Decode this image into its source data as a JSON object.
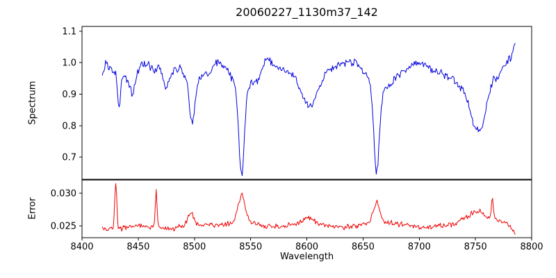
{
  "chart_data": {
    "type": "line",
    "title": "20060227_1130m37_142",
    "xlabel": "Wavelength",
    "xlim": [
      8400,
      8800
    ],
    "xticks": [
      8400,
      8450,
      8500,
      8550,
      8600,
      8650,
      8700,
      8750,
      8800
    ],
    "xtick_labels": [
      "8400",
      "8450",
      "8500",
      "8550",
      "8600",
      "8650",
      "8700",
      "8750",
      "8800"
    ],
    "x_range": [
      8418,
      8786
    ],
    "x_step": 0.75,
    "noise_seed": 12345,
    "panels": [
      {
        "name": "spectrum",
        "type": "line",
        "ylabel": "Spectrum",
        "color": "#0000dd",
        "ylim": [
          0.63,
          1.115
        ],
        "yticks": [
          0.7,
          0.8,
          0.9,
          1.0,
          1.1
        ],
        "ytick_labels": [
          "0.7",
          "0.8",
          "0.9",
          "1.0",
          "1.1"
        ],
        "noise": 0.011,
        "continuum": [
          [
            8418,
            0.955
          ],
          [
            8421,
            0.995
          ],
          [
            8424,
            0.98
          ],
          [
            8428,
            0.975
          ],
          [
            8433,
            0.97
          ],
          [
            8437,
            0.96
          ],
          [
            8442,
            0.945
          ],
          [
            8448,
            0.96
          ],
          [
            8452,
            0.985
          ],
          [
            8456,
            1.0
          ],
          [
            8460,
            0.99
          ],
          [
            8464,
            0.975
          ],
          [
            8468,
            0.985
          ],
          [
            8472,
            0.96
          ],
          [
            8476,
            0.955
          ],
          [
            8480,
            0.97
          ],
          [
            8484,
            0.985
          ],
          [
            8488,
            0.995
          ],
          [
            8492,
            0.99
          ],
          [
            8500,
            0.985
          ],
          [
            8508,
            0.975
          ],
          [
            8514,
            0.97
          ],
          [
            8518,
            0.995
          ],
          [
            8522,
            1.005
          ],
          [
            8526,
            0.995
          ],
          [
            8534,
            0.99
          ],
          [
            8542,
            0.995
          ],
          [
            8550,
            0.975
          ],
          [
            8556,
            0.96
          ],
          [
            8560,
            0.98
          ],
          [
            8564,
            1.02
          ],
          [
            8568,
            1.0
          ],
          [
            8574,
            0.985
          ],
          [
            8580,
            0.975
          ],
          [
            8586,
            0.965
          ],
          [
            8594,
            0.97
          ],
          [
            8600,
            0.975
          ],
          [
            8610,
            0.965
          ],
          [
            8618,
            0.975
          ],
          [
            8624,
            0.985
          ],
          [
            8630,
            0.995
          ],
          [
            8636,
            1.0
          ],
          [
            8642,
            1.005
          ],
          [
            8648,
            0.995
          ],
          [
            8656,
            0.99
          ],
          [
            8662,
            0.985
          ],
          [
            8668,
            0.96
          ],
          [
            8674,
            0.945
          ],
          [
            8680,
            0.96
          ],
          [
            8686,
            0.975
          ],
          [
            8692,
            0.985
          ],
          [
            8698,
            1.0
          ],
          [
            8704,
            0.995
          ],
          [
            8710,
            0.98
          ],
          [
            8716,
            0.97
          ],
          [
            8722,
            0.965
          ],
          [
            8728,
            0.95
          ],
          [
            8734,
            0.935
          ],
          [
            8740,
            0.92
          ],
          [
            8746,
            0.925
          ],
          [
            8752,
            0.93
          ],
          [
            8758,
            0.915
          ],
          [
            8762,
            0.93
          ],
          [
            8766,
            0.955
          ],
          [
            8770,
            0.95
          ],
          [
            8774,
            0.985
          ],
          [
            8778,
            1.005
          ],
          [
            8782,
            1.02
          ],
          [
            8786,
            1.075
          ]
        ],
        "features": [
          {
            "center": 8433,
            "amp": -0.115,
            "sigma": 1.3
          },
          {
            "center": 8445,
            "amp": -0.05,
            "sigma": 2
          },
          {
            "center": 8475,
            "amp": -0.03,
            "sigma": 2.5
          },
          {
            "center": 8498,
            "amp": -0.135,
            "sigma": 2.2
          },
          {
            "center": 8498,
            "amp": -0.045,
            "sigma": 7
          },
          {
            "center": 8542,
            "amp": -0.28,
            "sigma": 2.4
          },
          {
            "center": 8542,
            "amp": -0.07,
            "sigma": 8
          },
          {
            "center": 8602,
            "amp": -0.115,
            "sigma": 6.5
          },
          {
            "center": 8662,
            "amp": -0.27,
            "sigma": 2.4
          },
          {
            "center": 8662,
            "amp": -0.06,
            "sigma": 8
          },
          {
            "center": 8752,
            "amp": -0.145,
            "sigma": 6
          }
        ]
      },
      {
        "name": "error",
        "type": "line",
        "ylabel": "Error",
        "color": "#ee0000",
        "ylim": [
          0.0232,
          0.032
        ],
        "yticks": [
          0.025,
          0.03
        ],
        "ytick_labels": [
          "0.025",
          "0.030"
        ],
        "noise": 0.00035,
        "continuum": [
          [
            8418,
            0.0246
          ],
          [
            8428,
            0.0247
          ],
          [
            8436,
            0.0246
          ],
          [
            8444,
            0.0249
          ],
          [
            8452,
            0.025
          ],
          [
            8460,
            0.0248
          ],
          [
            8470,
            0.0247
          ],
          [
            8480,
            0.0246
          ],
          [
            8490,
            0.025
          ],
          [
            8500,
            0.0253
          ],
          [
            8510,
            0.0252
          ],
          [
            8520,
            0.0251
          ],
          [
            8530,
            0.0254
          ],
          [
            8542,
            0.0256
          ],
          [
            8552,
            0.0255
          ],
          [
            8562,
            0.025
          ],
          [
            8572,
            0.0249
          ],
          [
            8582,
            0.0251
          ],
          [
            8592,
            0.0253
          ],
          [
            8602,
            0.0254
          ],
          [
            8612,
            0.0251
          ],
          [
            8622,
            0.0249
          ],
          [
            8632,
            0.0248
          ],
          [
            8642,
            0.025
          ],
          [
            8652,
            0.0253
          ],
          [
            8662,
            0.0256
          ],
          [
            8672,
            0.0255
          ],
          [
            8682,
            0.0253
          ],
          [
            8692,
            0.0251
          ],
          [
            8702,
            0.0247
          ],
          [
            8712,
            0.0248
          ],
          [
            8722,
            0.0251
          ],
          [
            8732,
            0.0253
          ],
          [
            8740,
            0.0262
          ],
          [
            8748,
            0.027
          ],
          [
            8754,
            0.0272
          ],
          [
            8760,
            0.0262
          ],
          [
            8766,
            0.026
          ],
          [
            8772,
            0.0258
          ],
          [
            8778,
            0.0253
          ],
          [
            8783,
            0.0245
          ],
          [
            8786,
            0.0237
          ]
        ],
        "features": [
          {
            "center": 8430,
            "amp": 0.0068,
            "sigma": 0.9
          },
          {
            "center": 8466,
            "amp": 0.0055,
            "sigma": 0.8
          },
          {
            "center": 8497,
            "amp": 0.0018,
            "sigma": 2.5
          },
          {
            "center": 8542,
            "amp": 0.0042,
            "sigma": 3
          },
          {
            "center": 8602,
            "amp": 0.0008,
            "sigma": 5
          },
          {
            "center": 8662,
            "amp": 0.003,
            "sigma": 2.8
          },
          {
            "center": 8765,
            "amp": 0.0033,
            "sigma": 0.9
          }
        ]
      }
    ]
  }
}
